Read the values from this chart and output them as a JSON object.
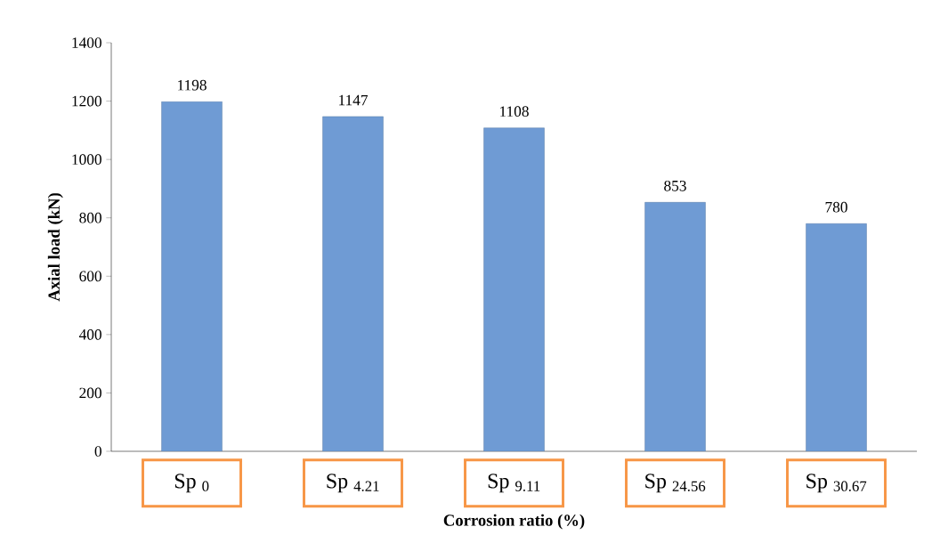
{
  "chart_data": {
    "type": "bar",
    "xlabel": "Corrosion ratio (%)",
    "ylabel": "Axial load (kN)",
    "categories": [
      "Sp $_{0}$",
      "Sp $_{4.21}$",
      "Sp $_{9.11}$",
      "Sp $_{24.56}$",
      "Sp $_{30.67}$"
    ],
    "values": [
      1198,
      1147,
      1108,
      853,
      780
    ],
    "color": "#6f9bd4",
    "ylim": [
      0,
      1400
    ],
    "yticks": [
      0,
      200,
      400,
      600,
      800,
      1000,
      1200,
      1400
    ],
    "data_labels": true
  }
}
